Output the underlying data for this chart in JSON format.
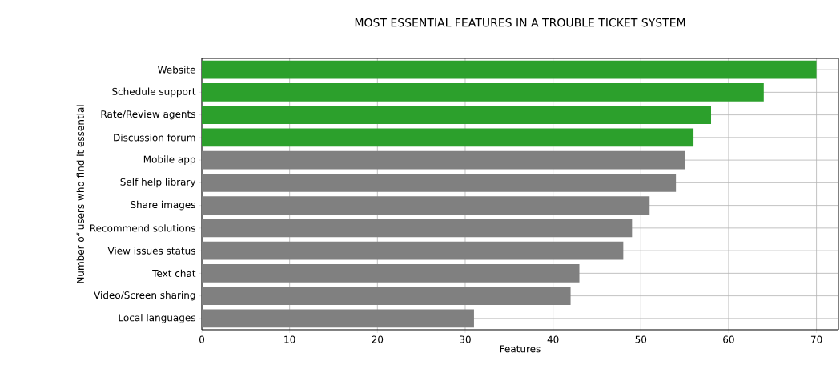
{
  "chart_data": {
    "type": "bar",
    "orientation": "horizontal",
    "title": "MOST ESSENTIAL FEATURES IN A TROUBLE TICKET SYSTEM",
    "xlabel": "Features",
    "ylabel": "Number of users who find it essential",
    "categories": [
      "Website",
      "Schedule support",
      "Rate/Review agents",
      "Discussion forum",
      "Mobile app",
      "Self help library",
      "Share images",
      "Recommend solutions",
      "View issues status",
      "Text chat",
      "Video/Screen sharing",
      "Local languages"
    ],
    "values": [
      70,
      64,
      58,
      56,
      55,
      54,
      51,
      49,
      48,
      43,
      42,
      31
    ],
    "colors": [
      "#2ca02c",
      "#2ca02c",
      "#2ca02c",
      "#2ca02c",
      "#808080",
      "#808080",
      "#808080",
      "#808080",
      "#808080",
      "#808080",
      "#808080",
      "#808080"
    ],
    "xlim": [
      0,
      72.5
    ],
    "xticks": [
      0,
      10,
      20,
      30,
      40,
      50,
      60,
      70
    ],
    "grid": true
  }
}
